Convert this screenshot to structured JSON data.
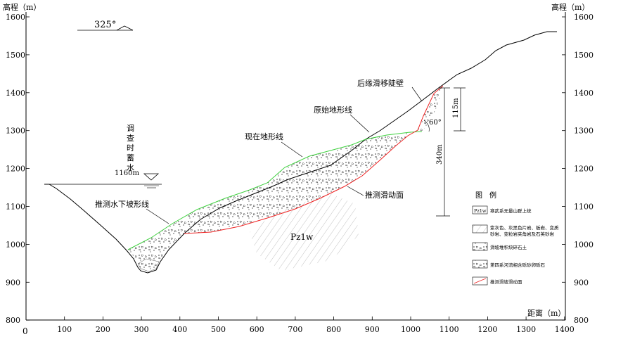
{
  "axes": {
    "left_title": "高程（m）",
    "right_title": "高程（m）",
    "x_title": "距离（m）",
    "x_origin": "0",
    "y_ticks": [
      "1600",
      "1500",
      "1400",
      "1300",
      "1200",
      "1100",
      "1000",
      "900",
      "800"
    ],
    "x_ticks": [
      "100",
      "200",
      "300",
      "400",
      "500",
      "600",
      "700",
      "800",
      "900",
      "1000",
      "1100",
      "1200",
      "1300",
      "1400"
    ]
  },
  "orientation": "325°",
  "water": {
    "label": [
      "调",
      "查",
      "时",
      "蓄",
      "水"
    ],
    "elevation": "1160m"
  },
  "labels": {
    "rear_scarp": "后缘滑移陡壁",
    "original_terrain": "原始地形线",
    "current_terrain": "现在地形线",
    "underwater_slope": "推测水下坡形线",
    "sliding_surface": "推测滑动面",
    "bedrock": "Pz1w",
    "scarp_angle": "60°",
    "height_115": "115m",
    "height_340": "340m"
  },
  "legend": {
    "title": "图　例",
    "items": [
      {
        "code": "Pz1w",
        "text": "寒武系无量山群上统"
      },
      {
        "code": "",
        "text": "紫灰色、灰黑色片岩、板岩、变质砂岩、变粒岩夹角岩及石英砂岩"
      },
      {
        "code": "",
        "text": "滑坡堆积块碎石土"
      },
      {
        "code": "",
        "text": "第四系河流相含砾砂卵砾石"
      },
      {
        "code": "",
        "text": "推测滑坡滑动面"
      }
    ]
  }
}
